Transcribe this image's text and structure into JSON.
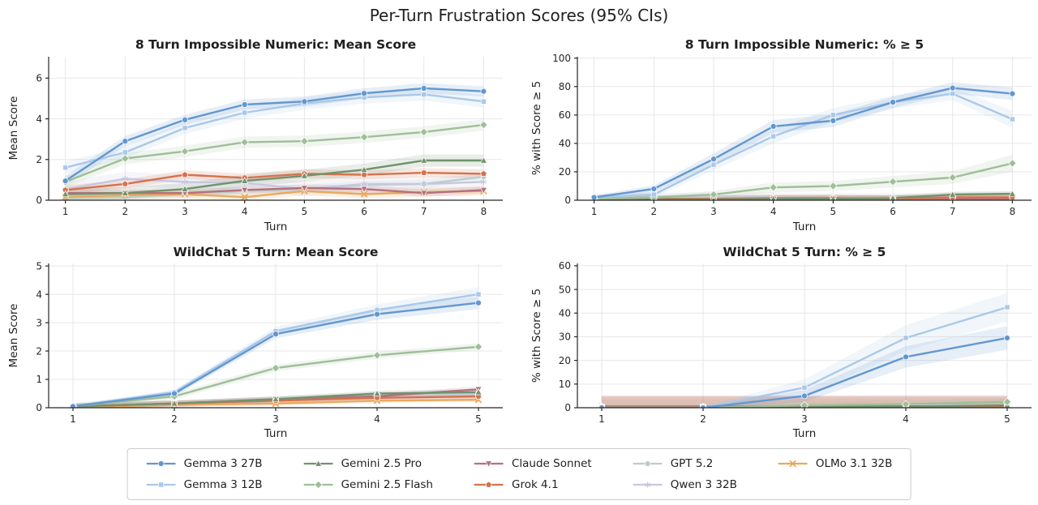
{
  "title": "Per-Turn Frustration Scores (95% CIs)",
  "models": [
    {
      "name": "Gemma 3 27B",
      "color": "#6397cf",
      "marker": "circle"
    },
    {
      "name": "Gemma 3 12B",
      "color": "#abc8e8",
      "marker": "square"
    },
    {
      "name": "Gemini 2.5 Pro",
      "color": "#72926d",
      "marker": "triangle-up"
    },
    {
      "name": "Gemini 2.5 Flash",
      "color": "#9fbe99",
      "marker": "diamond"
    },
    {
      "name": "Claude Sonnet",
      "color": "#b4707e",
      "marker": "triangle-down"
    },
    {
      "name": "Grok 4.1",
      "color": "#d4724d",
      "marker": "pentagon"
    },
    {
      "name": "GPT 5.2",
      "color": "#b9cfc7",
      "marker": "circle"
    },
    {
      "name": "Qwen 3 32B",
      "color": "#c8c7e0",
      "marker": "star"
    },
    {
      "name": "OLMo 3.1 32B",
      "color": "#e8a95e",
      "marker": "x"
    }
  ],
  "legend": {
    "items": [
      "Gemma 3 27B",
      "Gemma 3 12B",
      "Gemini 2.5 Pro",
      "Gemini 2.5 Flash",
      "Claude Sonnet",
      "Grok 4.1",
      "GPT 5.2",
      "Qwen 3 32B",
      "OLMo 3.1 32B"
    ]
  },
  "chart_data": [
    {
      "type": "line",
      "title": "8 Turn Impossible Numeric: Mean Score",
      "xlabel": "Turn",
      "ylabel": "Mean Score",
      "x": [
        1,
        2,
        3,
        4,
        5,
        6,
        7,
        8
      ],
      "xlim": [
        0.72,
        8.32
      ],
      "ylim": [
        0,
        7.05
      ],
      "yticks": [
        0,
        2,
        4,
        6
      ],
      "grid": true,
      "series": [
        {
          "name": "GPT 5.2",
          "values": [
            0.1,
            0.15,
            0.3,
            0.45,
            0.55,
            0.75,
            0.8,
            1.15
          ],
          "ci": 0.2
        },
        {
          "name": "Qwen 3 32B",
          "values": [
            0.55,
            1.05,
            0.9,
            0.85,
            0.55,
            0.8,
            0.8,
            0.9
          ],
          "ci": 0.35
        },
        {
          "name": "OLMo 3.1 32B",
          "values": [
            0.15,
            0.25,
            0.3,
            0.15,
            0.45,
            0.3,
            0.4,
            0.45
          ],
          "ci": 0.22
        },
        {
          "name": "Claude Sonnet",
          "values": [
            0.35,
            0.35,
            0.35,
            0.5,
            0.6,
            0.55,
            0.35,
            0.5
          ],
          "ci": 0.18
        },
        {
          "name": "Grok 4.1",
          "values": [
            0.5,
            0.8,
            1.25,
            1.1,
            1.3,
            1.25,
            1.35,
            1.3
          ],
          "ci": 0.22
        },
        {
          "name": "Gemini 2.5 Pro",
          "values": [
            0.3,
            0.35,
            0.55,
            0.95,
            1.2,
            1.5,
            1.95,
            1.95
          ],
          "ci": 0.3
        },
        {
          "name": "Gemini 2.5 Flash",
          "values": [
            0.9,
            2.05,
            2.4,
            2.85,
            2.9,
            3.1,
            3.35,
            3.7
          ],
          "ci": 0.28
        },
        {
          "name": "Gemma 3 12B",
          "values": [
            1.6,
            2.35,
            3.55,
            4.3,
            4.75,
            5.05,
            5.2,
            4.85
          ],
          "ci": 0.3
        },
        {
          "name": "Gemma 3 27B",
          "values": [
            0.95,
            2.9,
            3.95,
            4.7,
            4.85,
            5.25,
            5.5,
            5.35
          ],
          "ci": 0.25
        }
      ]
    },
    {
      "type": "line",
      "title": "8 Turn Impossible Numeric: % ≥ 5",
      "xlabel": "Turn",
      "ylabel": "% with Score ≥ 5",
      "x": [
        1,
        2,
        3,
        4,
        5,
        6,
        7,
        8
      ],
      "xlim": [
        0.72,
        8.32
      ],
      "ylim": [
        0,
        101
      ],
      "yticks": [
        0,
        20,
        40,
        60,
        80,
        100
      ],
      "grid": true,
      "series": [
        {
          "name": "GPT 5.2",
          "values": [
            0.5,
            0.5,
            0.5,
            1,
            1,
            1,
            1.5,
            1.5
          ],
          "ci": 2.5
        },
        {
          "name": "Qwen 3 32B",
          "values": [
            1,
            2,
            2,
            2,
            1.5,
            1.5,
            2,
            2
          ],
          "ci": 3.5
        },
        {
          "name": "OLMo 3.1 32B",
          "values": [
            0.5,
            0.5,
            1,
            1,
            1,
            1,
            1.5,
            1.5
          ],
          "ci": 2.5
        },
        {
          "name": "Claude Sonnet",
          "values": [
            0.5,
            0.5,
            0.5,
            1,
            1,
            1,
            1,
            1
          ],
          "ci": 2.5
        },
        {
          "name": "Grok 4.1",
          "values": [
            0.5,
            1,
            1,
            1.5,
            1.5,
            1,
            2,
            2
          ],
          "ci": 2.5
        },
        {
          "name": "Gemini 2.5 Pro",
          "values": [
            0,
            0.5,
            0.5,
            1,
            1,
            1.5,
            4,
            4.5
          ],
          "ci": 2
        },
        {
          "name": "Gemini 2.5 Flash",
          "values": [
            1,
            2,
            4,
            9,
            10,
            13,
            16,
            26
          ],
          "ci": [
            1.5,
            1.5,
            2.5,
            3.5,
            3.5,
            4,
            4.5,
            6
          ]
        },
        {
          "name": "Gemma 3 12B",
          "values": [
            2,
            4,
            25,
            45,
            60,
            69,
            75,
            57
          ],
          "ci": [
            1.5,
            2,
            4,
            5,
            5,
            4.5,
            4.5,
            6
          ]
        },
        {
          "name": "Gemma 3 27B",
          "values": [
            2,
            8,
            29,
            52,
            56,
            69,
            79,
            75
          ],
          "ci": [
            1.5,
            2.5,
            4,
            4.5,
            4.5,
            4,
            4,
            4.5
          ]
        }
      ]
    },
    {
      "type": "line",
      "title": "WildChat 5 Turn: Mean Score",
      "xlabel": "Turn",
      "ylabel": "Mean Score",
      "x": [
        1,
        2,
        3,
        4,
        5
      ],
      "xlim": [
        0.76,
        5.24
      ],
      "ylim": [
        0,
        5.09
      ],
      "yticks": [
        0,
        1,
        2,
        3,
        4,
        5
      ],
      "grid": true,
      "series": [
        {
          "name": "GPT 5.2",
          "values": [
            0.05,
            0.15,
            0.3,
            0.45,
            0.5
          ],
          "ci": 0.1
        },
        {
          "name": "Qwen 3 32B",
          "values": [
            0.05,
            0.15,
            0.25,
            0.4,
            0.45
          ],
          "ci": 0.12
        },
        {
          "name": "OLMo 3.1 32B",
          "values": [
            0.03,
            0.1,
            0.15,
            0.25,
            0.28
          ],
          "ci": 0.08
        },
        {
          "name": "Claude Sonnet",
          "values": [
            0.05,
            0.15,
            0.3,
            0.4,
            0.65
          ],
          "ci": 0.1
        },
        {
          "name": "Grok 4.1",
          "values": [
            0.05,
            0.15,
            0.25,
            0.35,
            0.4
          ],
          "ci": 0.1
        },
        {
          "name": "Gemini 2.5 Pro",
          "values": [
            0.05,
            0.15,
            0.3,
            0.5,
            0.55
          ],
          "ci": 0.1
        },
        {
          "name": "Gemini 2.5 Flash",
          "values": [
            0.05,
            0.4,
            1.4,
            1.85,
            2.15
          ],
          "ci": 0.12
        },
        {
          "name": "Gemma 3 12B",
          "values": [
            0.05,
            0.55,
            2.7,
            3.45,
            4.0
          ],
          "ci": [
            0.05,
            0.1,
            0.15,
            0.2,
            0.25
          ]
        },
        {
          "name": "Gemma 3 27B",
          "values": [
            0.05,
            0.5,
            2.6,
            3.3,
            3.7
          ],
          "ci": [
            0.05,
            0.1,
            0.15,
            0.2,
            0.22
          ]
        }
      ]
    },
    {
      "type": "line",
      "title": "WildChat 5 Turn: % ≥ 5",
      "xlabel": "Turn",
      "ylabel": "% with Score ≥ 5",
      "x": [
        1,
        2,
        3,
        4,
        5
      ],
      "xlim": [
        0.76,
        5.24
      ],
      "ylim": [
        0,
        61
      ],
      "yticks": [
        0,
        10,
        20,
        30,
        40,
        50,
        60
      ],
      "grid": true,
      "series": [
        {
          "name": "GPT 5.2",
          "values": [
            0.5,
            0.5,
            0.5,
            1,
            1
          ],
          "ci": 3
        },
        {
          "name": "Qwen 3 32B",
          "values": [
            0.5,
            0.5,
            0.5,
            1,
            1
          ],
          "ci": 4.5
        },
        {
          "name": "OLMo 3.1 32B",
          "values": [
            0.5,
            0.5,
            0.5,
            0.5,
            0.5
          ],
          "ci": 4
        },
        {
          "name": "Claude Sonnet",
          "values": [
            0.5,
            0.5,
            0.5,
            0.5,
            0.5
          ],
          "ci": 4.5
        },
        {
          "name": "Grok 4.1",
          "values": [
            0.5,
            0.5,
            0.5,
            0.5,
            0.5
          ],
          "ci": 4.5
        },
        {
          "name": "Gemini 2.5 Pro",
          "values": [
            0,
            0,
            0.5,
            0.5,
            1
          ],
          "ci": 1
        },
        {
          "name": "Gemini 2.5 Flash",
          "values": [
            0,
            0,
            1,
            1.5,
            2.5
          ],
          "ci": 1.5
        },
        {
          "name": "Gemma 3 12B",
          "values": [
            0,
            0,
            8.5,
            29.5,
            42.5
          ],
          "ci": [
            0.5,
            0.5,
            3.5,
            5.5,
            6
          ]
        },
        {
          "name": "Gemma 3 27B",
          "values": [
            0,
            0,
            5,
            21.5,
            29.5
          ],
          "ci": [
            0.5,
            0.5,
            2.5,
            4.5,
            5
          ]
        }
      ]
    }
  ]
}
